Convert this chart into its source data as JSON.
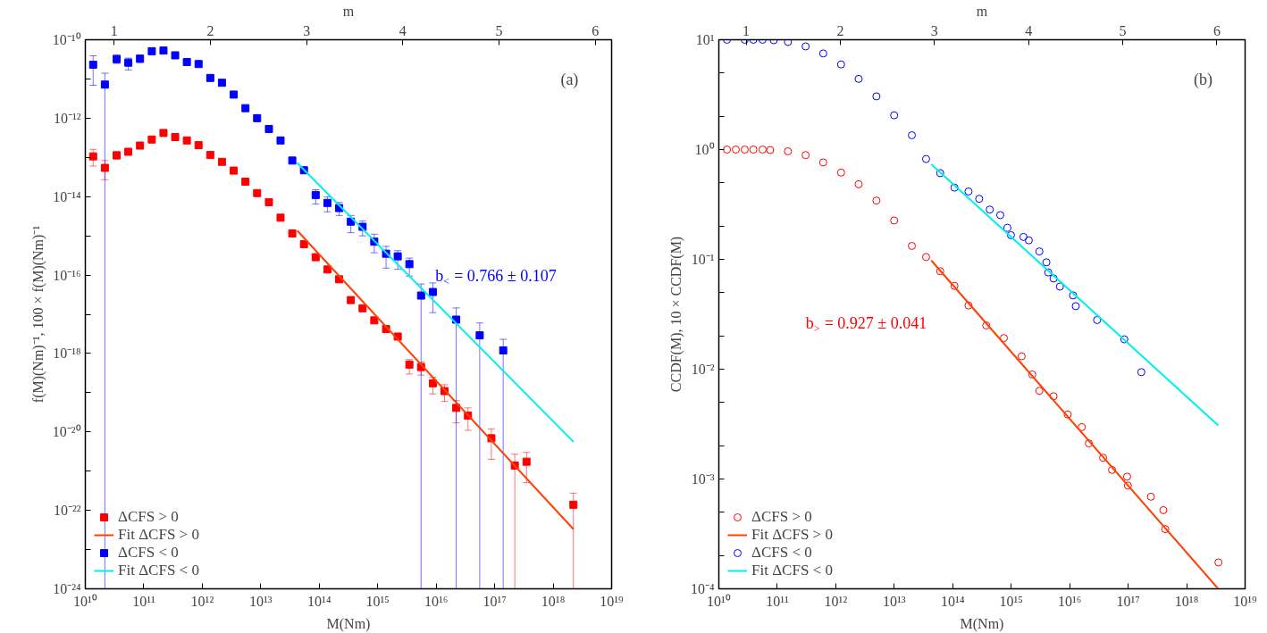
{
  "chart_data": [
    {
      "type": "scatter",
      "xlabel": "M(Nm)",
      "ylabel": "f(M)(Nm)⁻¹, 100 × f(M)(Nm)⁻¹",
      "x2label": "m",
      "log": "xy",
      "grid": false,
      "legend": "bottom left",
      "xlim": [
        10000000000.0,
        1e+19
      ],
      "ylim": [
        1e-24,
        1e-10
      ],
      "x2lim": [
        0.7,
        6.17
      ],
      "xticks": [
        {
          "value": 10000000000.0,
          "label": "10¹⁰"
        },
        {
          "value": 100000000000.0,
          "label": "10¹¹"
        },
        {
          "value": 1000000000000.0,
          "label": "10¹²"
        },
        {
          "value": 10000000000000.0,
          "label": "10¹³"
        },
        {
          "value": 100000000000000.0,
          "label": "10¹⁴"
        },
        {
          "value": 1000000000000000.0,
          "label": "10¹⁵"
        },
        {
          "value": 1e+16,
          "label": "10¹⁶"
        },
        {
          "value": 1e+17,
          "label": "10¹⁷"
        },
        {
          "value": 1e+18,
          "label": "10¹⁸"
        },
        {
          "value": 1e+19,
          "label": "10¹⁹"
        }
      ],
      "yticks": [
        {
          "value": 1e-24,
          "label": "10⁻²⁴"
        },
        {
          "value": 1e-23,
          "label": null
        },
        {
          "value": 1e-22,
          "label": "10⁻²²"
        },
        {
          "value": 1e-21,
          "label": null
        },
        {
          "value": 1e-20,
          "label": "10⁻²⁰"
        },
        {
          "value": 1e-19,
          "label": null
        },
        {
          "value": 1e-18,
          "label": "10⁻¹⁸"
        },
        {
          "value": 1e-17,
          "label": null
        },
        {
          "value": 1e-16,
          "label": "10⁻¹⁶"
        },
        {
          "value": 1e-15,
          "label": null
        },
        {
          "value": 1e-14,
          "label": "10⁻¹⁴"
        },
        {
          "value": 1e-13,
          "label": null
        },
        {
          "value": 1e-12,
          "label": "10⁻¹²"
        },
        {
          "value": 1e-11,
          "label": null
        },
        {
          "value": 1e-10,
          "label": "10⁻¹⁰"
        }
      ],
      "x2ticks": [
        1,
        2,
        3,
        4,
        5,
        6
      ],
      "x": [
        13600000000.0,
        21600000000.0,
        34300000000.0,
        54300000000.0,
        86100000000.0,
        137000000000.0,
        217000000000.0,
        344000000000.0,
        545000000000.0,
        864000000000.0,
        1370000000000.0,
        2170000000000.0,
        3450000000000.0,
        5470000000000.0,
        8670000000000.0,
        13800000000000.0,
        21800000000000.0,
        34600000000000.0,
        54800000000000.0,
        87000000000000.0,
        138000000000000.0,
        219000000000000.0,
        347000000000000.0,
        551000000000000.0,
        873000000000000.0,
        1390000000000000.0,
        2200000000000000.0,
        3480000000000000.0,
        5520000000000000.0,
        8770000000000000.0,
        1.39e+16,
        2.2e+16,
        3.5e+16,
        5.55e+16,
        8.79e+16,
        1.4e+17,
        2.21e+17,
        3.51e+17,
        5.56e+17,
        8.83e+17,
        1.4e+18,
        2.22e+18
      ],
      "annotations": [
        "(a)",
        "b$_{<}$ = 0.766 ± 0.107"
      ],
      "series": [
        {
          "name": "ΔCFS > 0",
          "color": "#ff0000",
          "marker": "square",
          "values": [
            1.06e-13,
            5.4e-14,
            1.13e-13,
            1.39e-13,
            2e-13,
            2.85e-13,
            4.2e-13,
            3.3e-13,
            2.7e-13,
            2.05e-13,
            1.15e-13,
            7.7e-14,
            4.6e-14,
            2.4e-14,
            1.23e-14,
            7.2e-15,
            2.9e-15,
            1.15e-15,
            6.1e-16,
            2.85e-16,
            1.39e-16,
            7.8e-17,
            2.3e-17,
            1.42e-17,
            7e-18,
            4.2e-18,
            2.7e-18,
            5.2e-19,
            4.5e-19,
            1.74e-19,
            1.1e-19,
            4.1e-20,
            2.6e-20,
            null,
            6.9e-21,
            null,
            1.39e-21,
            1.74e-21,
            null,
            null,
            null,
            1.39e-22
          ],
          "errors": [
            [
              6e-14,
              1.6e-13
            ],
            [
              2.7e-14,
              8.3e-14
            ],
            [
              9e-14,
              1.4e-13
            ],
            null,
            null,
            null,
            null,
            null,
            null,
            null,
            null,
            null,
            null,
            null,
            null,
            null,
            null,
            null,
            null,
            null,
            null,
            null,
            null,
            null,
            null,
            null,
            null,
            [
              3e-19,
              7e-19
            ],
            [
              2.8e-19,
              6e-19
            ],
            [
              9.3e-20,
              2.5e-19
            ],
            [
              6e-20,
              1.6e-19
            ],
            [
              1.7e-20,
              6.3e-20
            ],
            [
              1.1e-20,
              4.1e-20
            ],
            null,
            [
              2e-21,
              1.2e-20
            ],
            null,
            [
              1e-24,
              2.7e-21
            ],
            [
              5.1e-22,
              3e-21
            ],
            null,
            null,
            null,
            [
              1e-24,
              2.75e-22
            ]
          ]
        },
        {
          "name": "Fit ΔCFS > 0",
          "type": "line",
          "color": "#ff4000",
          "x": [
            42000000000000.0,
            2.23e+18
          ],
          "values": [
            1.36e-15,
            3.3e-23
          ]
        },
        {
          "name": "ΔCFS < 0",
          "color": "#0000ff",
          "marker": "square",
          "values": [
            2.3e-11,
            7.2e-12,
            3.2e-11,
            2.6e-11,
            3.3e-11,
            5.1e-11,
            5.3e-11,
            4e-11,
            2.7e-11,
            2.4e-11,
            1.06e-11,
            8e-12,
            4e-12,
            1.8e-12,
            1e-12,
            5.3e-13,
            2.7e-13,
            8.3e-14,
            4.7e-14,
            1.1e-14,
            6.9e-15,
            5.1e-15,
            2.3e-15,
            1.7e-15,
            7.1e-16,
            3.5e-16,
            3e-16,
            1.9e-16,
            3e-17,
            3.7e-17,
            null,
            7.3e-18,
            null,
            2.9e-18,
            null,
            1.2e-18,
            null,
            null,
            null,
            null,
            null,
            null
          ],
          "errors": [
            [
              6.9e-12,
              3.9e-11
            ],
            [
              1e-24,
              1.4e-11
            ],
            [
              2.5e-11,
              4.1e-11
            ],
            [
              1.7e-11,
              3.4e-11
            ],
            [
              2.6e-11,
              3.9e-11
            ],
            null,
            null,
            null,
            null,
            null,
            null,
            null,
            null,
            null,
            null,
            null,
            null,
            null,
            null,
            [
              6.5e-15,
              1.5e-14
            ],
            [
              4.1e-15,
              9.8e-15
            ],
            [
              3.3e-15,
              7.1e-15
            ],
            [
              1.2e-15,
              3.3e-15
            ],
            [
              1e-15,
              2.4e-15
            ],
            [
              3.7e-16,
              1.1e-15
            ],
            [
              1.5e-16,
              5.4e-16
            ],
            [
              1.4e-16,
              4.2e-16
            ],
            [
              9.4e-17,
              2.7e-16
            ],
            [
              1e-24,
              5.9e-17
            ],
            [
              1.1e-17,
              6.3e-17
            ],
            null,
            [
              1e-24,
              1.45e-17
            ],
            null,
            [
              1e-24,
              6e-18
            ],
            null,
            [
              1e-24,
              2.3e-18
            ],
            null,
            null,
            null,
            null,
            null,
            null
          ]
        },
        {
          "name": "Fit ΔCFS < 0",
          "type": "line",
          "color": "#00eeee",
          "x": [
            42000000000000.0,
            2.23e+18
          ],
          "values": [
            7.2e-14,
            5.6e-21
          ]
        }
      ]
    },
    {
      "type": "scatter",
      "xlabel": "M(Nm)",
      "ylabel": "CCDF(M), 10 × CCDF(M)",
      "x2label": "m",
      "log": "xy",
      "grid": false,
      "legend": "bottom left",
      "xlim": [
        10000000000.0,
        1e+19
      ],
      "ylim": [
        0.0001,
        10
      ],
      "x2lim": [
        0.71,
        6.3
      ],
      "xticks": [
        {
          "value": 10000000000.0,
          "label": "10¹⁰"
        },
        {
          "value": 100000000000.0,
          "label": "10¹¹"
        },
        {
          "value": 1000000000000.0,
          "label": "10¹²"
        },
        {
          "value": 10000000000000.0,
          "label": "10¹³"
        },
        {
          "value": 100000000000000.0,
          "label": "10¹⁴"
        },
        {
          "value": 1000000000000000.0,
          "label": "10¹⁵"
        },
        {
          "value": 1e+16,
          "label": "10¹⁶"
        },
        {
          "value": 1e+17,
          "label": "10¹⁷"
        },
        {
          "value": 1e+18,
          "label": "10¹⁸"
        },
        {
          "value": 1e+19,
          "label": "10¹⁹"
        }
      ],
      "yticks": [
        {
          "value": 0.0001,
          "label": "10⁻⁴"
        },
        {
          "value": 0.0002,
          "label": null
        },
        {
          "value": 0.0005,
          "label": null
        },
        {
          "value": 0.001,
          "label": "10⁻³"
        },
        {
          "value": 0.002,
          "label": null
        },
        {
          "value": 0.005,
          "label": null
        },
        {
          "value": 0.01,
          "label": "10⁻²"
        },
        {
          "value": 0.02,
          "label": null
        },
        {
          "value": 0.05,
          "label": null
        },
        {
          "value": 0.1,
          "label": "10⁻¹"
        },
        {
          "value": 0.2,
          "label": null
        },
        {
          "value": 0.5,
          "label": null
        },
        {
          "value": 1,
          "label": "10⁰"
        },
        {
          "value": 2,
          "label": null
        },
        {
          "value": 5,
          "label": null
        },
        {
          "value": 10,
          "label": "10¹"
        }
      ],
      "x2ticks": [
        1,
        2,
        3,
        4,
        5,
        6
      ],
      "annotations": [
        "(b)",
        "b$_{>}$ = 0.927 ± 0.041"
      ],
      "series": [
        {
          "name": "ΔCFS > 0",
          "color": "#ff0000",
          "marker": "circle",
          "x": [
            13800000000.0,
            19500000000.0,
            27700000000.0,
            39000000000.0,
            56000000000.0,
            75500000000.0,
            152000000000.0,
            305000000000.0,
            610000000000.0,
            1230000000000.0,
            2460000000000.0,
            4950000000000.0,
            9950000000000.0,
            20000000000000.0,
            35000000000000.0,
            61000000000000.0,
            107000000000000.0,
            186000000000000.0,
            374000000000000.0,
            750000000000000.0,
            1510000000000000.0,
            2290000000000000.0,
            3030000000000000.0,
            5300000000000000.0,
            9250000000000000.0,
            1.61e+16,
            2.13e+16,
            3.73e+16,
            5.3e+16,
            9.6e+16,
            9.9e+16,
            2.45e+17,
            4e+17,
            4.3e+17,
            3.5e+18
          ],
          "values": [
            1.0,
            1.0,
            1.0,
            1.0,
            1.0,
            0.99,
            0.963,
            0.89,
            0.764,
            0.617,
            0.483,
            0.343,
            0.226,
            0.1325,
            0.105,
            0.078,
            0.0574,
            0.038,
            0.025,
            0.0192,
            0.0131,
            0.00895,
            0.00635,
            0.00567,
            0.00387,
            0.00297,
            0.00211,
            0.00156,
            0.00121,
            0.00105,
            0.00087,
            0.00069,
            0.00052,
            0.00035,
            0.000174
          ]
        },
        {
          "name": "Fit ΔCFS > 0",
          "type": "line",
          "color": "#ff4000",
          "x": [
            43000000000000.0,
            3.47e+18
          ],
          "values": [
            0.0977,
            0.0001
          ]
        },
        {
          "name": "ΔCFS < 0",
          "color": "#0000ff",
          "marker": "circle",
          "x": [
            13800000000.0,
            27700000000.0,
            39000000000.0,
            56000000000.0,
            87000000000.0,
            152000000000.0,
            305000000000.0,
            610000000000.0,
            1230000000000.0,
            2460000000000.0,
            4950000000000.0,
            9950000000000.0,
            20000000000000.0,
            35000000000000.0,
            61000000000000.0,
            107000000000000.0,
            186000000000000.0,
            283000000000000.0,
            430000000000000.0,
            650000000000000.0,
            860000000000000.0,
            990000000000000.0,
            1620000000000000.0,
            2000000000000000.0,
            3030000000000000.0,
            4000000000000000.0,
            4300000000000000.0,
            5300000000000000.0,
            6800000000000000.0,
            1.14e+16,
            1.27e+16,
            2.94e+16,
            8.6e+16,
            1.68e+17
          ],
          "values": [
            10,
            10,
            10,
            10,
            9.9,
            9.55,
            8.7,
            7.5,
            5.96,
            4.4,
            3.05,
            2.05,
            1.35,
            0.82,
            0.61,
            0.45,
            0.415,
            0.356,
            0.284,
            0.253,
            0.194,
            0.166,
            0.16,
            0.149,
            0.118,
            0.094,
            0.076,
            0.067,
            0.0565,
            0.047,
            0.0375,
            0.028,
            0.0187,
            0.0094
          ]
        },
        {
          "name": "Fit ΔCFS < 0",
          "type": "line",
          "color": "#00eeee",
          "x": [
            43000000000000.0,
            3.47e+18
          ],
          "values": [
            0.734,
            0.00308
          ]
        }
      ]
    }
  ]
}
